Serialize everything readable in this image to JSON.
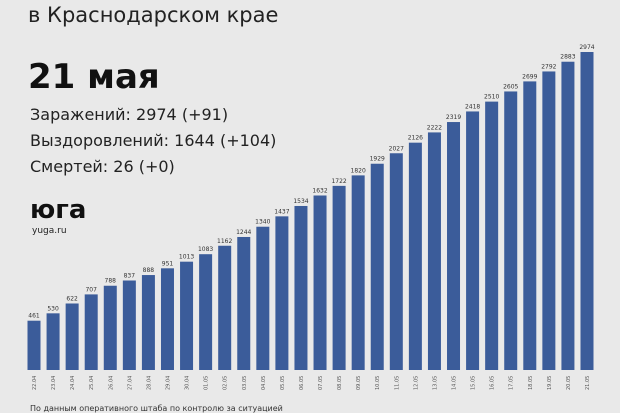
{
  "header": {
    "title": "в Краснодарском крае",
    "date": "21 мая",
    "stats": [
      "Заражений: 2974 (+91)",
      "Выздоровлений: 1644 (+104)",
      "Смертей: 26 (+0)"
    ],
    "logo": "юга",
    "site": "yuga.ru"
  },
  "footer": "По данным оперативного штаба по контролю за ситуацией",
  "chart_data": {
    "type": "bar",
    "color": "#3b5c9a",
    "categories": [
      "22.04",
      "23.04",
      "24.04",
      "25.04",
      "26.04",
      "27.04",
      "28.04",
      "29.04",
      "30.04",
      "01.05",
      "02.05",
      "03.05",
      "04.05",
      "05.05",
      "06.05",
      "07.05",
      "08.05",
      "09.05",
      "10.05",
      "11.05",
      "12.05",
      "13.05",
      "14.05",
      "15.05",
      "16.05",
      "17.05",
      "18.05",
      "19.05",
      "20.05",
      "21.05"
    ],
    "values": [
      461,
      530,
      622,
      707,
      788,
      837,
      888,
      951,
      1013,
      1083,
      1162,
      1244,
      1340,
      1437,
      1534,
      1632,
      1722,
      1820,
      1929,
      2027,
      2126,
      2222,
      2319,
      2418,
      2510,
      2605,
      2699,
      2792,
      2883,
      2974
    ]
  }
}
